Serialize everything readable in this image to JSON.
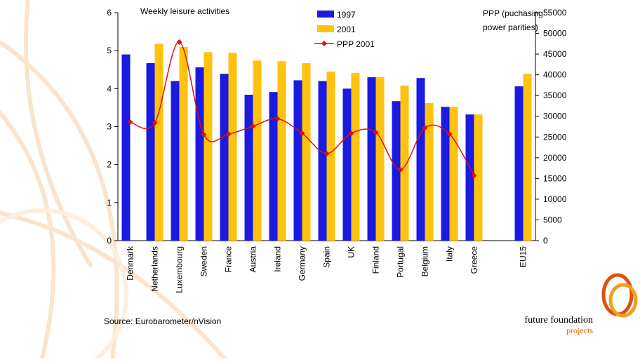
{
  "chart_data": {
    "type": "bar",
    "title": "Weekly leisure activities",
    "y2_label": [
      "PPP (puchasing",
      "power parities)"
    ],
    "source": "Source: Eurobarometer/nVision",
    "logo": {
      "line1": "future foundation",
      "line2": "projects"
    },
    "categories": [
      "Denmark",
      "Netherlands",
      "Luxembourg",
      "Sweden",
      "France",
      "Austria",
      "Ireland",
      "Germany",
      "Spain",
      "UK",
      "Finland",
      "Portugal",
      "Belgium",
      "Italy",
      "Greece",
      null,
      "EU15"
    ],
    "series": [
      {
        "name": "1997",
        "color": "#1a1ae0",
        "values": [
          4.9,
          4.67,
          4.2,
          4.56,
          4.39,
          3.84,
          3.91,
          4.22,
          4.2,
          4.0,
          4.3,
          3.67,
          4.28,
          3.52,
          3.32,
          null,
          4.06
        ]
      },
      {
        "name": "2001",
        "color": "#ffc20e",
        "values": [
          null,
          5.18,
          5.1,
          4.96,
          4.94,
          4.74,
          4.72,
          4.67,
          4.45,
          4.41,
          4.3,
          4.08,
          3.62,
          3.52,
          3.32,
          null,
          4.39
        ]
      },
      {
        "name": "PPP 2001",
        "type": "line",
        "axis": "y2",
        "color": "#e01010",
        "values": [
          28600,
          28400,
          47900,
          25550,
          25700,
          27600,
          29400,
          25900,
          21000,
          25900,
          26100,
          17100,
          27200,
          25700,
          15700,
          null,
          null
        ]
      }
    ],
    "ylim": [
      0,
      6
    ],
    "yticks": [
      0,
      1,
      2,
      3,
      4,
      5,
      6
    ],
    "y2lim": [
      0,
      55000
    ],
    "y2ticks": [
      0,
      5000,
      10000,
      15000,
      20000,
      25000,
      30000,
      35000,
      40000,
      45000,
      50000,
      55000
    ],
    "legend": "top"
  }
}
